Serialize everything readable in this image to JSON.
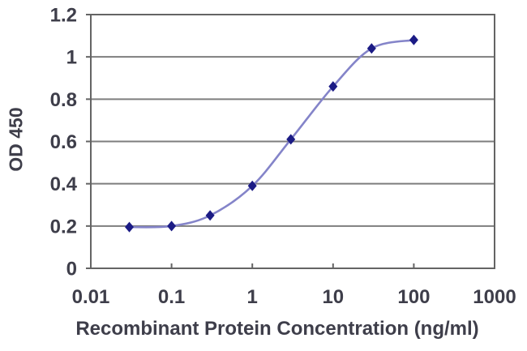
{
  "chart_data": {
    "type": "line",
    "title": "",
    "xlabel": "Recombinant Protein Concentration (ng/ml)",
    "ylabel": "OD 450",
    "x_scale": "log",
    "x": [
      0.03,
      0.1,
      0.3,
      1,
      3,
      10,
      30,
      100
    ],
    "series": [
      {
        "name": "OD 450",
        "values": [
          0.195,
          0.2,
          0.25,
          0.39,
          0.61,
          0.86,
          1.04,
          1.08
        ]
      }
    ],
    "xlim": [
      0.01,
      1000
    ],
    "ylim": [
      0,
      1.2
    ],
    "x_ticks": [
      {
        "value": 0.01,
        "label": "0.01"
      },
      {
        "value": 0.1,
        "label": "0.1"
      },
      {
        "value": 1,
        "label": "1"
      },
      {
        "value": 10,
        "label": "10"
      },
      {
        "value": 100,
        "label": "100"
      },
      {
        "value": 1000,
        "label": "1000"
      }
    ],
    "y_ticks": [
      {
        "value": 0,
        "label": "0"
      },
      {
        "value": 0.2,
        "label": "0.2"
      },
      {
        "value": 0.4,
        "label": "0.4"
      },
      {
        "value": 0.6,
        "label": "0.6"
      },
      {
        "value": 0.8,
        "label": "0.8"
      },
      {
        "value": 1,
        "label": "1"
      },
      {
        "value": 1.2,
        "label": "1.2"
      }
    ],
    "grid": "horizontal",
    "legend_position": "none",
    "marker_shape": "diamond",
    "line_style": "smooth",
    "colors": {
      "line": "#8484c9",
      "marker": "#1b1b85",
      "grid": "#7e7e7e",
      "axis": "#646464",
      "text": "#3e3e4a",
      "background": "#ffffff"
    }
  }
}
